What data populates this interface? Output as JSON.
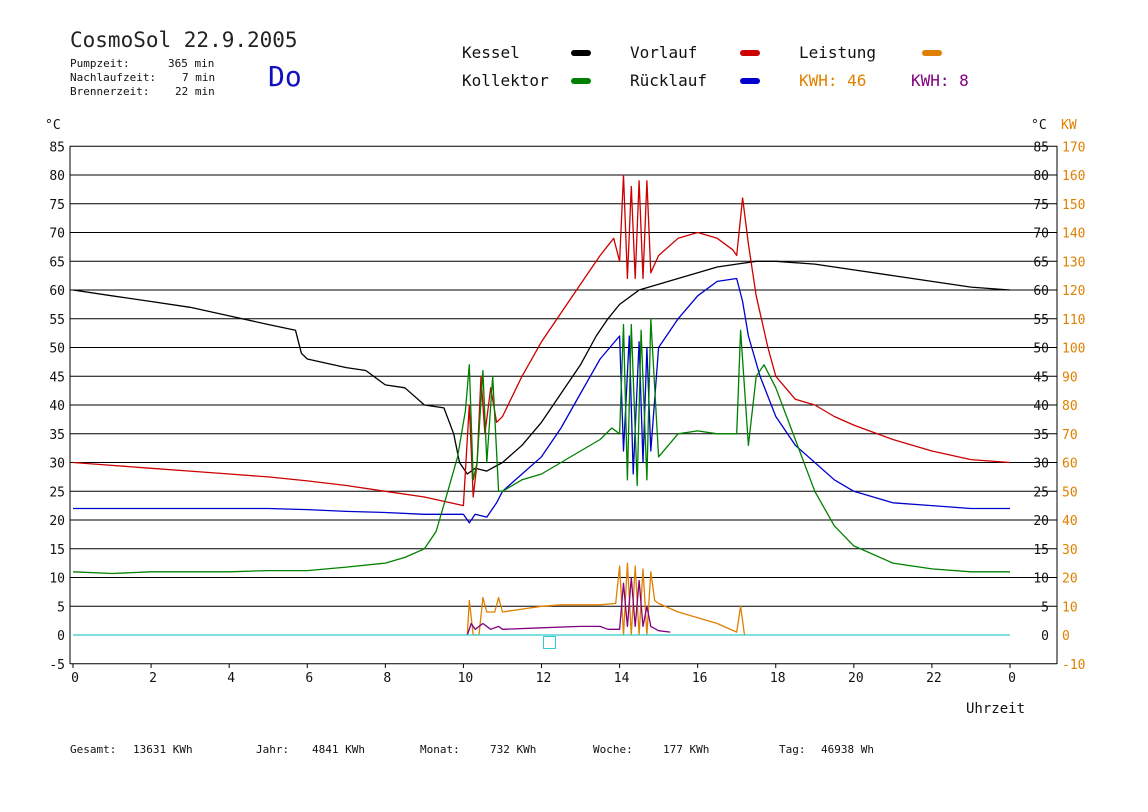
{
  "header": {
    "title": "CosmoSol 22.9.2005",
    "day": "Do",
    "info": [
      {
        "label": "Pumpzeit:",
        "value": "365 min"
      },
      {
        "label": "Nachlaufzeit:",
        "value": "7 min"
      },
      {
        "label": "Brennerzeit:",
        "value": "22 min"
      }
    ]
  },
  "legend": {
    "kessel": "Kessel",
    "kollektor": "Kollektor",
    "vorlauf": "Vorlauf",
    "ruecklauf": "Rücklauf",
    "leistung": "Leistung",
    "kwh_orange": "KWH: 46",
    "kwh_purple": "KWH: 8"
  },
  "axis": {
    "left_unit": "°C",
    "right_unit_c": "°C",
    "right_unit_kw": "KW",
    "x_label": "Uhrzeit"
  },
  "footer": [
    {
      "label": "Gesamt:",
      "value": "13631 KWh"
    },
    {
      "label": "Jahr:",
      "value": "4841 KWh"
    },
    {
      "label": "Monat:",
      "value": "732 KWh"
    },
    {
      "label": "Woche:",
      "value": "177 KWh"
    },
    {
      "label": "Tag:",
      "value": "46938 Wh"
    }
  ],
  "colors": {
    "kessel": "#000000",
    "kollektor": "#008000",
    "vorlauf": "#cc0000",
    "ruecklauf": "#0000cc",
    "leistung": "#e08000",
    "kwh_purple": "#800080",
    "zero_line": "#33cccc",
    "grid": "#000000"
  },
  "chart_data": {
    "type": "line",
    "xlabel": "Uhrzeit",
    "ylabel": "°C",
    "ylabel_right": "KW",
    "xlim": [
      0,
      24
    ],
    "ylim": [
      -5,
      85
    ],
    "ylim_right": [
      -10,
      170
    ],
    "x_ticks": [
      "0",
      "2",
      "4",
      "6",
      "8",
      "10",
      "12",
      "14",
      "16",
      "18",
      "20",
      "22",
      "0"
    ],
    "y_ticks": [
      -5,
      0,
      5,
      10,
      15,
      20,
      25,
      30,
      35,
      40,
      45,
      50,
      55,
      60,
      65,
      70,
      75,
      80,
      85
    ],
    "y_ticks_right_c": [
      0,
      5,
      10,
      15,
      20,
      25,
      30,
      35,
      40,
      45,
      50,
      55,
      60,
      65,
      70,
      75,
      80,
      85
    ],
    "y_ticks_right_kw": [
      -10,
      0,
      10,
      20,
      30,
      40,
      50,
      60,
      70,
      80,
      90,
      100,
      110,
      120,
      130,
      140,
      150,
      160,
      170
    ],
    "grid": true,
    "series": [
      {
        "name": "Kessel",
        "color": "#000000",
        "points": [
          [
            0,
            60
          ],
          [
            1,
            59
          ],
          [
            2,
            58
          ],
          [
            3,
            57
          ],
          [
            4,
            55.5
          ],
          [
            5,
            54
          ],
          [
            5.7,
            53
          ],
          [
            5.85,
            49
          ],
          [
            6,
            48
          ],
          [
            7,
            46.5
          ],
          [
            7.5,
            46
          ],
          [
            8,
            43.5
          ],
          [
            8.5,
            43
          ],
          [
            9,
            40
          ],
          [
            9.5,
            39.5
          ],
          [
            9.75,
            35
          ],
          [
            9.9,
            30
          ],
          [
            10.1,
            28
          ],
          [
            10.3,
            29
          ],
          [
            10.6,
            28.5
          ],
          [
            11,
            30
          ],
          [
            11.5,
            33
          ],
          [
            12,
            37
          ],
          [
            12.5,
            42
          ],
          [
            13,
            47
          ],
          [
            13.4,
            52
          ],
          [
            13.7,
            55
          ],
          [
            14,
            57.5
          ],
          [
            14.5,
            60
          ],
          [
            15,
            61
          ],
          [
            15.5,
            62
          ],
          [
            16,
            63
          ],
          [
            16.5,
            64
          ],
          [
            17,
            64.5
          ],
          [
            17.5,
            65
          ],
          [
            18,
            65
          ],
          [
            19,
            64.5
          ],
          [
            20,
            63.5
          ],
          [
            21,
            62.5
          ],
          [
            22,
            61.5
          ],
          [
            23,
            60.5
          ],
          [
            24,
            60
          ]
        ]
      },
      {
        "name": "Vorlauf",
        "color": "#cc0000",
        "points": [
          [
            0,
            30
          ],
          [
            1,
            29.5
          ],
          [
            2,
            29
          ],
          [
            3,
            28.5
          ],
          [
            4,
            28
          ],
          [
            5,
            27.5
          ],
          [
            6,
            26.8
          ],
          [
            7,
            26
          ],
          [
            8,
            25
          ],
          [
            9,
            24
          ],
          [
            10,
            22.5
          ],
          [
            10.15,
            40
          ],
          [
            10.25,
            24
          ],
          [
            10.35,
            30
          ],
          [
            10.45,
            45
          ],
          [
            10.55,
            35
          ],
          [
            10.7,
            43
          ],
          [
            10.85,
            37
          ],
          [
            11,
            38
          ],
          [
            11.5,
            45
          ],
          [
            12,
            51
          ],
          [
            12.5,
            56
          ],
          [
            13,
            61
          ],
          [
            13.5,
            66
          ],
          [
            13.85,
            69
          ],
          [
            14,
            65
          ],
          [
            14.1,
            80
          ],
          [
            14.2,
            62
          ],
          [
            14.3,
            78
          ],
          [
            14.4,
            62
          ],
          [
            14.5,
            79
          ],
          [
            14.6,
            62
          ],
          [
            14.7,
            79
          ],
          [
            14.8,
            63
          ],
          [
            15,
            66
          ],
          [
            15.5,
            69
          ],
          [
            16,
            70
          ],
          [
            16.5,
            69
          ],
          [
            16.9,
            67
          ],
          [
            17,
            66
          ],
          [
            17.15,
            76
          ],
          [
            17.3,
            68
          ],
          [
            17.5,
            59
          ],
          [
            17.8,
            50
          ],
          [
            18,
            45
          ],
          [
            18.5,
            41
          ],
          [
            19,
            40
          ],
          [
            19.5,
            38
          ],
          [
            20,
            36.5
          ],
          [
            21,
            34
          ],
          [
            22,
            32
          ],
          [
            23,
            30.5
          ],
          [
            24,
            30
          ]
        ]
      },
      {
        "name": "Rücklauf",
        "color": "#0000cc",
        "points": [
          [
            0,
            22
          ],
          [
            1,
            22
          ],
          [
            2,
            22
          ],
          [
            3,
            22
          ],
          [
            4,
            22
          ],
          [
            5,
            22
          ],
          [
            6,
            21.8
          ],
          [
            7,
            21.5
          ],
          [
            8,
            21.3
          ],
          [
            9,
            21
          ],
          [
            10,
            21
          ],
          [
            10.15,
            19.5
          ],
          [
            10.3,
            21
          ],
          [
            10.6,
            20.5
          ],
          [
            10.85,
            23
          ],
          [
            11,
            25
          ],
          [
            11.5,
            28
          ],
          [
            12,
            31
          ],
          [
            12.5,
            36
          ],
          [
            13,
            42
          ],
          [
            13.5,
            48
          ],
          [
            14,
            52
          ],
          [
            14.1,
            32
          ],
          [
            14.25,
            52
          ],
          [
            14.35,
            28
          ],
          [
            14.5,
            51
          ],
          [
            14.6,
            30
          ],
          [
            14.7,
            50
          ],
          [
            14.8,
            32
          ],
          [
            15,
            50
          ],
          [
            15.5,
            55
          ],
          [
            16,
            59
          ],
          [
            16.5,
            61.5
          ],
          [
            17,
            62
          ],
          [
            17.15,
            58
          ],
          [
            17.3,
            52
          ],
          [
            17.6,
            45
          ],
          [
            18,
            38
          ],
          [
            18.5,
            33
          ],
          [
            19,
            30
          ],
          [
            19.5,
            27
          ],
          [
            20,
            25
          ],
          [
            21,
            23
          ],
          [
            22,
            22.5
          ],
          [
            23,
            22
          ],
          [
            24,
            22
          ]
        ]
      },
      {
        "name": "Kollektor",
        "color": "#008000",
        "points": [
          [
            0,
            11
          ],
          [
            1,
            10.7
          ],
          [
            2,
            11
          ],
          [
            3,
            11
          ],
          [
            4,
            11
          ],
          [
            5,
            11.2
          ],
          [
            6,
            11.2
          ],
          [
            7,
            11.8
          ],
          [
            8,
            12.5
          ],
          [
            8.5,
            13.5
          ],
          [
            9,
            15
          ],
          [
            9.3,
            18
          ],
          [
            9.6,
            25
          ],
          [
            9.85,
            31
          ],
          [
            10.05,
            39
          ],
          [
            10.15,
            47
          ],
          [
            10.25,
            27
          ],
          [
            10.35,
            30
          ],
          [
            10.5,
            46
          ],
          [
            10.6,
            30
          ],
          [
            10.75,
            45
          ],
          [
            10.9,
            25
          ],
          [
            11,
            25
          ],
          [
            11.5,
            27
          ],
          [
            12,
            28
          ],
          [
            12.5,
            30
          ],
          [
            13,
            32
          ],
          [
            13.5,
            34
          ],
          [
            13.8,
            36
          ],
          [
            14,
            35
          ],
          [
            14.1,
            54
          ],
          [
            14.2,
            27
          ],
          [
            14.3,
            54
          ],
          [
            14.45,
            26
          ],
          [
            14.55,
            53
          ],
          [
            14.7,
            27
          ],
          [
            14.8,
            55
          ],
          [
            15,
            31
          ],
          [
            15.5,
            35
          ],
          [
            16,
            35.5
          ],
          [
            16.5,
            35
          ],
          [
            17,
            35
          ],
          [
            17.1,
            53
          ],
          [
            17.3,
            33
          ],
          [
            17.5,
            45
          ],
          [
            17.7,
            47
          ],
          [
            18,
            43
          ],
          [
            18.5,
            34
          ],
          [
            19,
            25
          ],
          [
            19.5,
            19
          ],
          [
            20,
            15.5
          ],
          [
            21,
            12.5
          ],
          [
            22,
            11.5
          ],
          [
            23,
            11
          ],
          [
            24,
            11
          ]
        ]
      },
      {
        "name": "Leistung",
        "color": "#e08000",
        "axis": "right_kw",
        "points": [
          [
            10.1,
            0
          ],
          [
            10.15,
            12
          ],
          [
            10.25,
            0
          ],
          [
            10.4,
            0
          ],
          [
            10.5,
            13
          ],
          [
            10.6,
            8
          ],
          [
            10.8,
            8
          ],
          [
            10.9,
            13
          ],
          [
            11,
            8
          ],
          [
            11.5,
            9
          ],
          [
            12,
            10
          ],
          [
            12.5,
            10.5
          ],
          [
            13,
            10.5
          ],
          [
            13.5,
            10.5
          ],
          [
            13.9,
            11
          ],
          [
            14,
            24
          ],
          [
            14.1,
            0
          ],
          [
            14.2,
            25
          ],
          [
            14.3,
            0
          ],
          [
            14.4,
            24
          ],
          [
            14.5,
            0
          ],
          [
            14.6,
            23
          ],
          [
            14.7,
            0
          ],
          [
            14.8,
            22
          ],
          [
            14.9,
            12
          ],
          [
            15,
            11
          ],
          [
            15.5,
            8
          ],
          [
            16,
            6
          ],
          [
            16.5,
            4
          ],
          [
            17,
            1
          ],
          [
            17.1,
            10
          ],
          [
            17.2,
            0
          ]
        ]
      },
      {
        "name": "KWH 8",
        "color": "#800080",
        "axis": "right_kw",
        "points": [
          [
            10.1,
            0
          ],
          [
            10.2,
            4
          ],
          [
            10.3,
            2
          ],
          [
            10.5,
            4
          ],
          [
            10.7,
            2
          ],
          [
            10.9,
            3
          ],
          [
            11,
            2
          ],
          [
            12,
            2.5
          ],
          [
            13,
            3
          ],
          [
            13.5,
            3
          ],
          [
            13.7,
            2
          ],
          [
            14,
            2
          ],
          [
            14.1,
            18
          ],
          [
            14.2,
            3
          ],
          [
            14.3,
            20
          ],
          [
            14.4,
            3
          ],
          [
            14.5,
            19
          ],
          [
            14.6,
            3
          ],
          [
            14.7,
            10
          ],
          [
            14.8,
            3
          ],
          [
            15,
            1.5
          ],
          [
            15.3,
            1
          ]
        ]
      },
      {
        "name": "Null",
        "color": "#33cccc",
        "points": [
          [
            0,
            0
          ],
          [
            24,
            0
          ]
        ]
      }
    ]
  }
}
